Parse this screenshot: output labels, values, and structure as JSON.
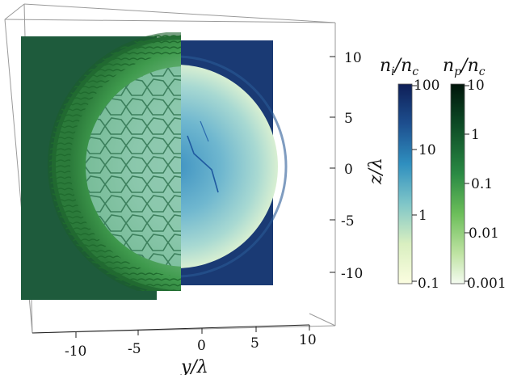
{
  "axes": {
    "y_label": "y/λ",
    "z_label": "z/λ",
    "y_ticks": [
      "-10",
      "-5",
      "0",
      "5",
      "10"
    ],
    "z_ticks": [
      "10",
      "5",
      "0",
      "-5",
      "-10"
    ]
  },
  "colorbars": [
    {
      "label": "n",
      "subscript": "i",
      "denominator": "n",
      "denominator_subscript": "c",
      "ticks": [
        "100",
        "10",
        "1",
        "0.1"
      ],
      "scale": "log",
      "colors": [
        "#0f1f57",
        "#1d4f8f",
        "#2f8fbf",
        "#7fc6c8",
        "#d9efc0",
        "#fbfde0"
      ]
    },
    {
      "label": "n",
      "subscript": "p",
      "denominator": "n",
      "denominator_subscript": "c",
      "ticks": [
        "10",
        "1",
        "0.1",
        "0.01",
        "0.001"
      ],
      "scale": "log",
      "colors": [
        "#00150a",
        "#0d4a25",
        "#2a8a44",
        "#6cbe5a",
        "#bfe3a3",
        "#f4fbf0"
      ]
    }
  ]
}
